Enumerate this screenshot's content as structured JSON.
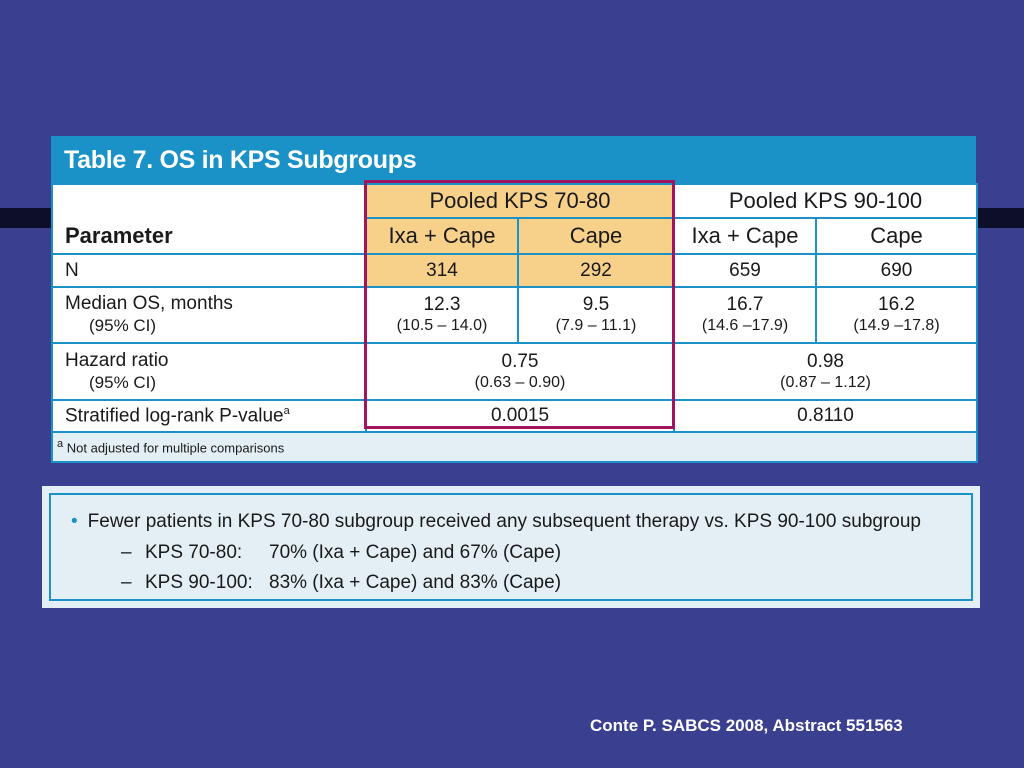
{
  "table": {
    "title": "Table 7. OS in KPS Subgroups",
    "param_header": "Parameter",
    "groups": [
      "Pooled KPS 70-80",
      "Pooled KPS 90-100"
    ],
    "arms": [
      "Ixa + Cape",
      "Cape",
      "Ixa + Cape",
      "Cape"
    ],
    "rows": {
      "n": {
        "label": "N",
        "values": [
          "314",
          "292",
          "659",
          "690"
        ]
      },
      "median": {
        "label": "Median OS, months",
        "sublabel": "(95% CI)",
        "values": [
          "12.3",
          "9.5",
          "16.7",
          "16.2"
        ],
        "ci": [
          "(10.5 – 14.0)",
          "(7.9 – 11.1)",
          "(14.6 –17.9)",
          "(14.9 –17.8)"
        ]
      },
      "hazard": {
        "label": "Hazard ratio",
        "sublabel": "(95% CI)",
        "values": [
          "0.75",
          "0.98"
        ],
        "ci": [
          "(0.63 – 0.90)",
          "(0.87 – 1.12)"
        ]
      },
      "strat": {
        "label": "Stratified log-rank P-value",
        "sup": "a",
        "values": [
          "0.0015",
          "0.8110"
        ]
      }
    },
    "footnote_sup": "a",
    "footnote": "Not adjusted for multiple comparisons"
  },
  "notes": {
    "bullet": "•",
    "main": "Fewer patients in KPS 70-80 subgroup received any subsequent therapy vs. KPS 90-100 subgroup",
    "dash": "–",
    "sub": [
      {
        "label": "KPS 70-80:",
        "text": "70% (Ixa + Cape) and 67% (Cape)"
      },
      {
        "label": "KPS 90-100:",
        "text": "83% (Ixa + Cape) and 83% (Cape)"
      }
    ]
  },
  "citation": "Conte P. SABCS 2008, Abstract 551563",
  "colors": {
    "background": "#3a3f8f",
    "title_bar": "#1a91c7",
    "highlight_fill": "#f7d08a",
    "highlight_border": "#a0165e"
  }
}
